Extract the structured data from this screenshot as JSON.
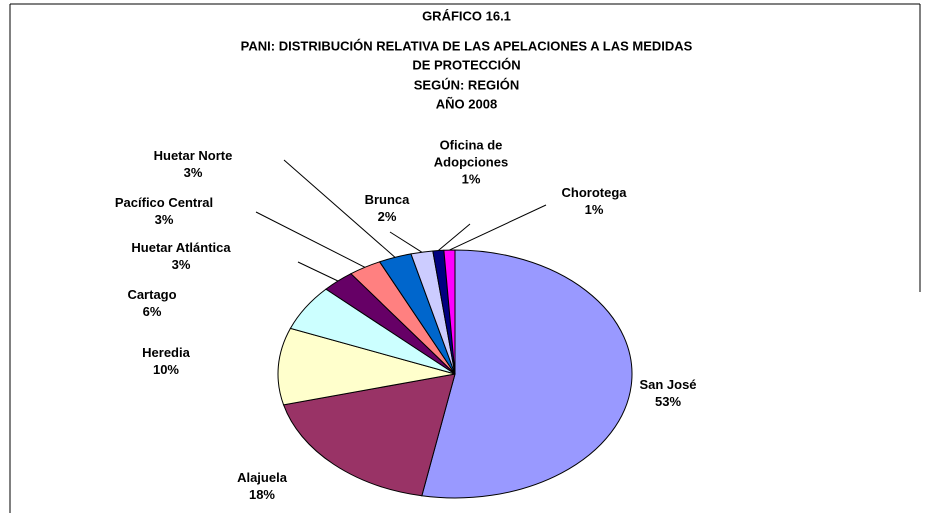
{
  "chart_data": {
    "type": "pie",
    "title": [
      "GRÁFICO 16.1",
      "PANI: DISTRIBUCIÓN RELATIVA DE LAS APELACIONES A LAS MEDIDAS",
      "DE PROTECCIÓN",
      "SEGÚN: REGIÓN",
      "AÑO 2008"
    ],
    "categories": [
      "San José",
      "Alajuela",
      "Heredia",
      "Cartago",
      "Huetar Atlántica",
      "Pacífico Central",
      "Huetar Norte",
      "Brunca",
      "Oficina de Adopciones",
      "Chorotega"
    ],
    "values": [
      53,
      18,
      10,
      6,
      3,
      3,
      3,
      2,
      1,
      1
    ],
    "value_labels": [
      "53%",
      "18%",
      "10%",
      "6%",
      "3%",
      "3%",
      "3%",
      "2%",
      "1%",
      "1%"
    ],
    "colors": [
      "#9999ff",
      "#993366",
      "#ffffcc",
      "#ccffff",
      "#660066",
      "#ff8080",
      "#0066cc",
      "#ccccff",
      "#000080",
      "#ff00ff"
    ]
  }
}
